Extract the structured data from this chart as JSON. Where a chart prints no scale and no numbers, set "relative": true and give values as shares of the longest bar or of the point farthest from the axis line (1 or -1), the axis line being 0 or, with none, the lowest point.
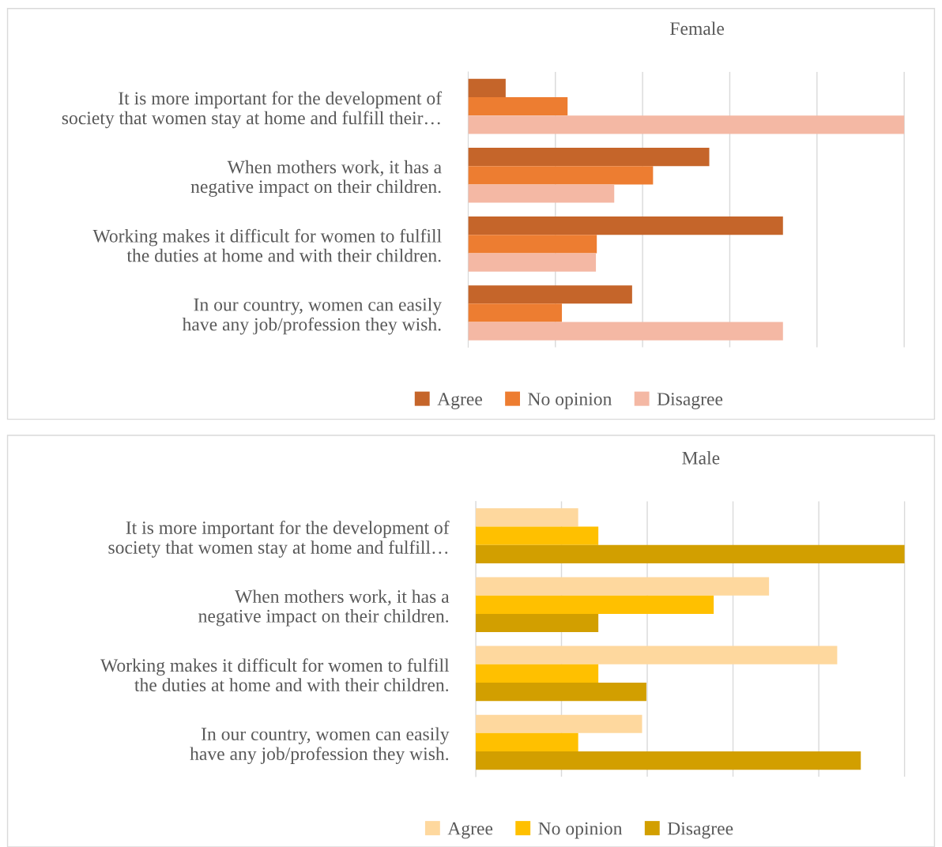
{
  "chart_data": [
    {
      "type": "bar",
      "orientation": "horizontal",
      "relative": true,
      "title": "Female",
      "categories": [
        "It is more important for the development of society that women stay at home and fulfill their…",
        "When mothers work, it has a negative impact on their children.",
        "Working makes it difficult for women to fulfill the duties at home and with their children.",
        "In our country, women can easily have any job/profession they wish."
      ],
      "series": [
        {
          "name": "Agree",
          "color": "#c5652a",
          "values": [
            0.086,
            0.553,
            0.722,
            0.376
          ]
        },
        {
          "name": "No opinion",
          "color": "#ed7d31",
          "values": [
            0.228,
            0.424,
            0.295,
            0.215
          ]
        },
        {
          "name": "Disagree",
          "color": "#f4b8a4",
          "values": [
            1,
            0.335,
            0.293,
            0.722
          ]
        }
      ],
      "grid": "x",
      "legend": "bottom"
    },
    {
      "type": "bar",
      "orientation": "horizontal",
      "relative": true,
      "title": "Male",
      "categories": [
        "It is more important for the development of society that women stay at home and fulfill…",
        "When mothers work, it has a negative impact on their children.",
        "Working makes it difficult for women to fulfill the duties at home and with their children.",
        "In our country, women can easily have any job/profession they wish."
      ],
      "series": [
        {
          "name": "Agree",
          "color": "#fed89e",
          "values": [
            0.239,
            0.684,
            0.843,
            0.388
          ]
        },
        {
          "name": "No opinion",
          "color": "#ffc000",
          "values": [
            0.286,
            0.555,
            0.286,
            0.239
          ]
        },
        {
          "name": "Disagree",
          "color": "#d29f00",
          "values": [
            1,
            0.286,
            0.398,
            0.898
          ]
        }
      ],
      "grid": "x",
      "legend": "bottom"
    }
  ]
}
